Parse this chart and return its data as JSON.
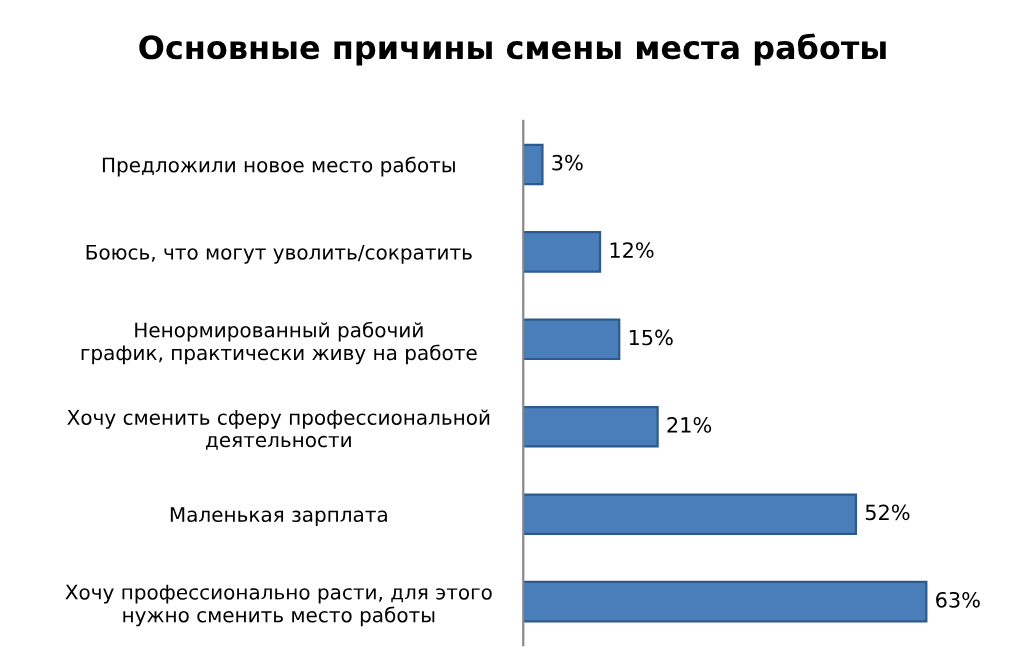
{
  "chart_data": {
    "type": "bar",
    "orientation": "horizontal",
    "title": "Основные причины смены места работы",
    "categories": [
      "Предложили новое место работы",
      "Боюсь, что могут уволить/сократить",
      "Ненормированный рабочий\nграфик, практически живу на работе",
      "Хочу сменить сферу профессиональной\nдеятельности",
      "Маленькая зарплата",
      "Хочу профессионально расти, для этого\nнужно сменить место работы"
    ],
    "values": [
      3,
      12,
      15,
      21,
      52,
      63
    ],
    "value_labels": [
      "3%",
      "12%",
      "15%",
      "21%",
      "52%",
      "63%"
    ],
    "color": "#4a7ebb",
    "grid": false,
    "legend": false
  }
}
